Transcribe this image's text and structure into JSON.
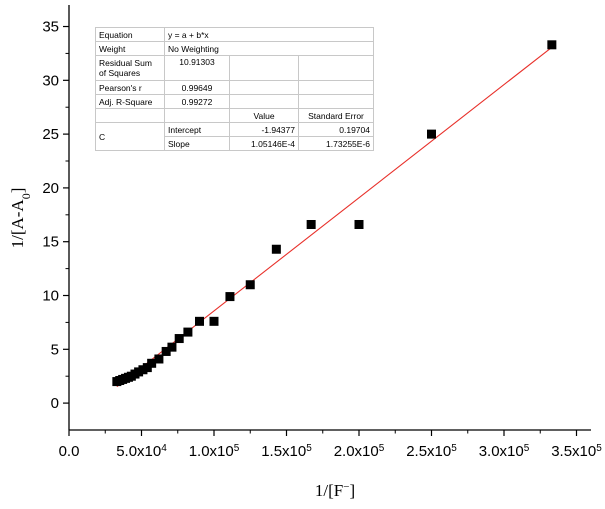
{
  "chart_data": {
    "type": "scatter",
    "xlabel": "1/[F⁻]",
    "ylabel": "1/[A-A0]",
    "xlim": [
      0,
      360000
    ],
    "ylim": [
      -2.5,
      37
    ],
    "x_ticks": [
      "0.0",
      "5.0x10⁴",
      "1.0x10⁵",
      "1.5x10⁵",
      "2.0x10⁵",
      "2.5x10⁵",
      "3.0x10⁵",
      "3.5x10⁵"
    ],
    "x_tick_values": [
      0,
      50000,
      100000,
      150000,
      200000,
      250000,
      300000,
      350000
    ],
    "y_ticks": [
      "0",
      "5",
      "10",
      "15",
      "20",
      "25",
      "30",
      "35"
    ],
    "y_tick_values": [
      0,
      5,
      10,
      15,
      20,
      25,
      30,
      35
    ],
    "grid": false,
    "series": [
      {
        "kind": "scatter",
        "color": "#000000",
        "x": [
          33000,
          35000,
          37000,
          39000,
          41000,
          43000,
          45500,
          48000,
          51000,
          54000,
          57000,
          62000,
          67000,
          71000,
          76000,
          82000,
          90000,
          100000,
          111000,
          125000,
          143000,
          167000,
          200000,
          250000,
          333000
        ],
        "y": [
          2.0,
          2.1,
          2.2,
          2.3,
          2.4,
          2.5,
          2.7,
          2.9,
          3.1,
          3.3,
          3.7,
          4.1,
          4.8,
          5.2,
          6.0,
          6.6,
          7.6,
          7.6,
          9.9,
          11.0,
          14.3,
          16.6,
          16.6,
          25.0,
          33.3
        ]
      },
      {
        "kind": "fit_line",
        "color": "#e8302a",
        "x_range": [
          33000,
          333000
        ],
        "intercept": -1.94377,
        "slope": 0.000105146
      }
    ],
    "stats_table": {
      "rows": [
        [
          "Equation",
          "y = a + b*x",
          "",
          ""
        ],
        [
          "Weight",
          "No Weighting",
          "",
          ""
        ],
        [
          "Residual Sum of Squares",
          "10.91303",
          "",
          ""
        ],
        [
          "Pearson's r",
          "0.99649",
          "",
          ""
        ],
        [
          "Adj. R-Square",
          "0.99272",
          "",
          ""
        ]
      ],
      "header": [
        "",
        "",
        "Value",
        "Standard Error"
      ],
      "param_group": "C",
      "params": [
        [
          "Intercept",
          "-1.94377",
          "0.19704"
        ],
        [
          "Slope",
          "1.05146E-4",
          "1.73255E-6"
        ]
      ]
    }
  }
}
